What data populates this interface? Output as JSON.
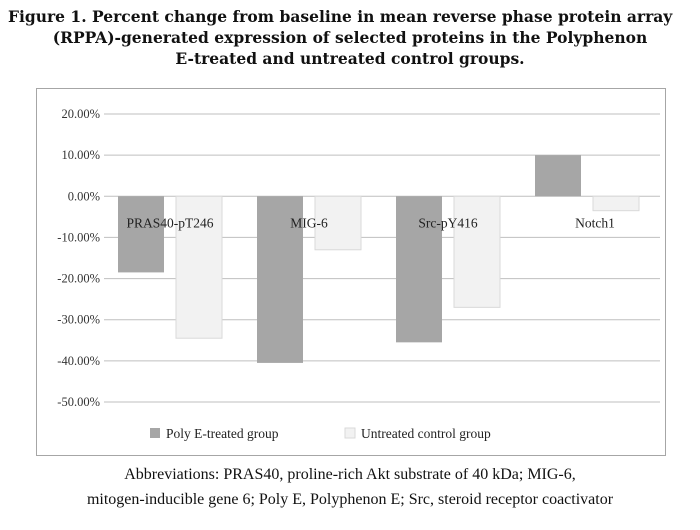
{
  "figure": {
    "title_line1": "Figure 1.  Percent change from baseline in mean reverse phase protein array",
    "title_line2": "(RPPA)-generated expression of selected  proteins in the Polyphenon",
    "title_line3": "E-treated and untreated control groups."
  },
  "note": {
    "line1": "Abbreviations: PRAS40, proline-rich Akt substrate of 40 kDa; MIG-6,",
    "line2": "mitogen-inducible gene 6; Poly E, Polyphenon E; Src, steroid receptor coactivator"
  },
  "chart_data": {
    "type": "bar",
    "categories": [
      "PRAS40-pT246",
      "MIG-6",
      "Src-pY416",
      "Notch1"
    ],
    "series": [
      {
        "name": "Poly E-treated group",
        "values": [
          -18.5,
          -40.5,
          -35.5,
          10.0
        ],
        "color": "#a6a6a6"
      },
      {
        "name": "Untreated control group",
        "values": [
          -34.5,
          -13.0,
          -27.0,
          -3.5
        ],
        "color": "#f2f2f2"
      }
    ],
    "ylim": [
      -50,
      20
    ],
    "yticks": [
      20,
      10,
      0,
      -10,
      -20,
      -30,
      -40,
      -50
    ],
    "ytick_labels": [
      "20.00%",
      "10.00%",
      "0.00%",
      "-10.00%",
      "-20.00%",
      "-30.00%",
      "-40.00%",
      "-50.00%"
    ],
    "grid": true,
    "legend_position": "bottom",
    "title": "",
    "xlabel": "",
    "ylabel": ""
  }
}
